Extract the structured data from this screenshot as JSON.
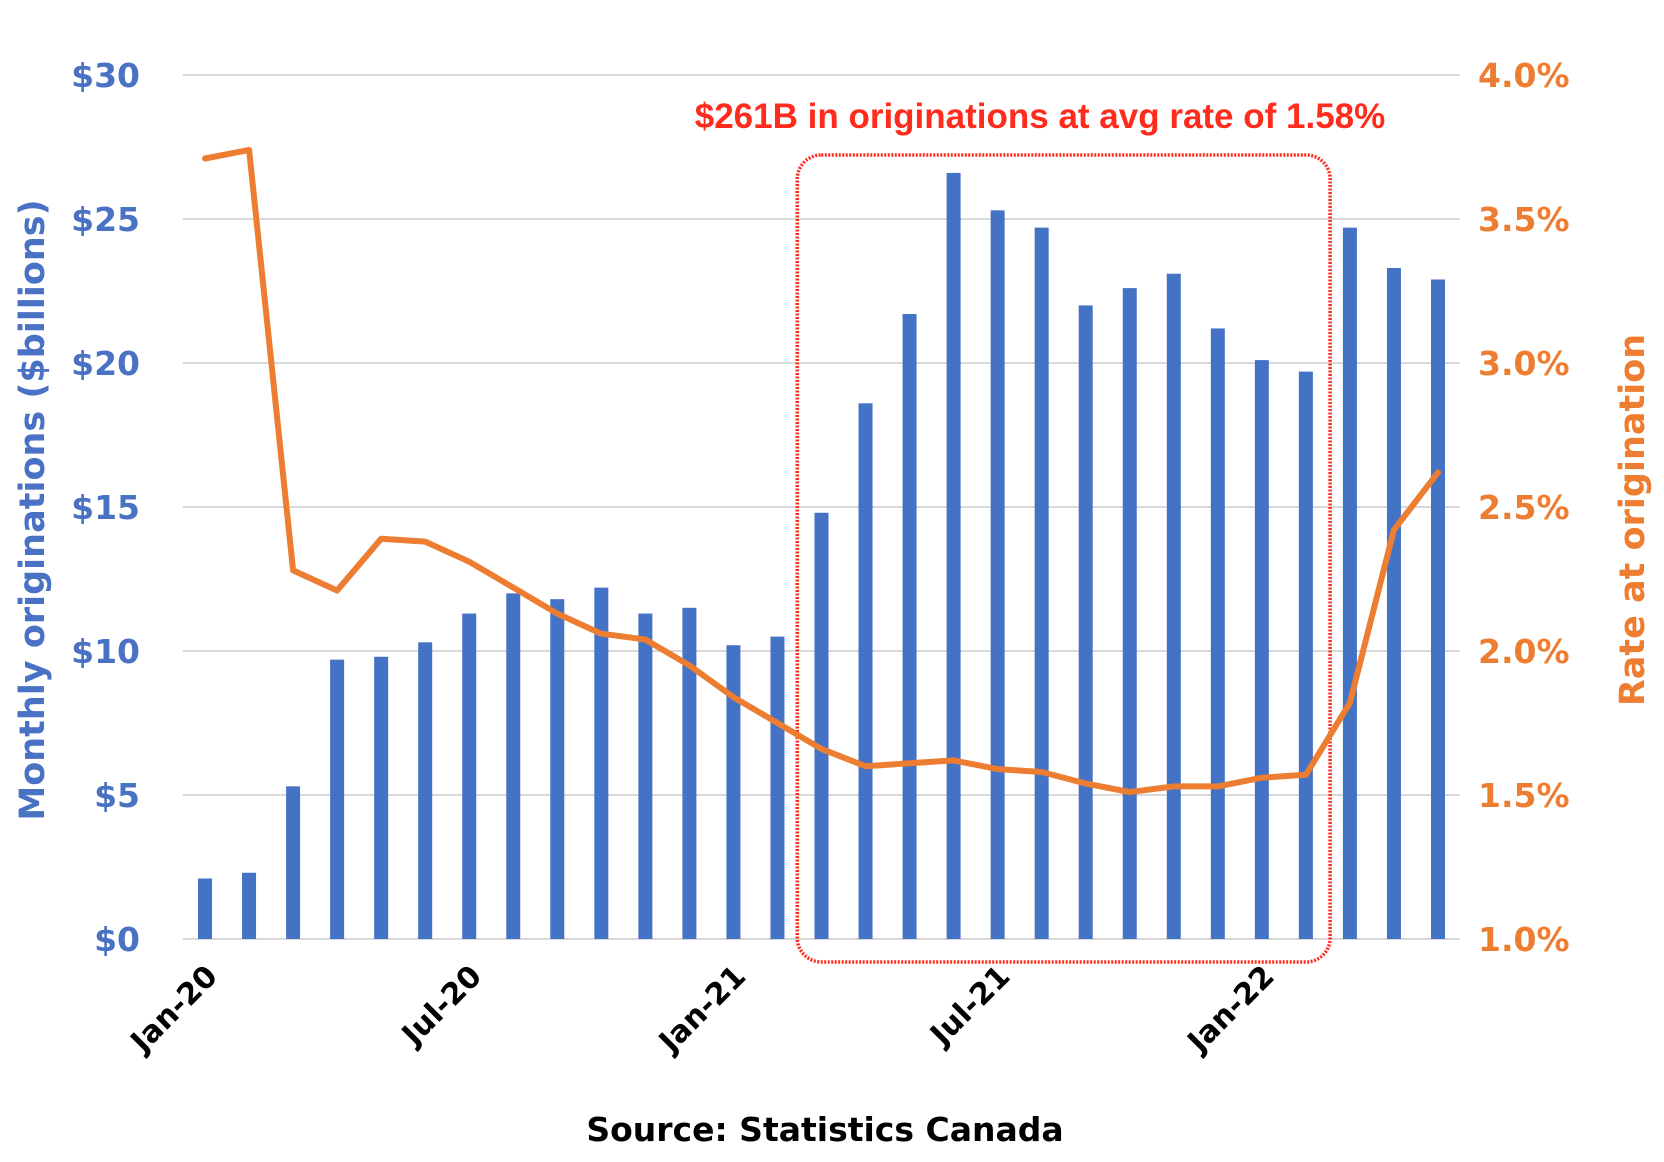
{
  "chart_data": {
    "type": "bar+line",
    "categories": [
      "Jan-20",
      "Feb-20",
      "Mar-20",
      "Apr-20",
      "May-20",
      "Jun-20",
      "Jul-20",
      "Aug-20",
      "Sep-20",
      "Oct-20",
      "Nov-20",
      "Dec-20",
      "Jan-21",
      "Feb-21",
      "Mar-21",
      "Apr-21",
      "May-21",
      "Jun-21",
      "Jul-21",
      "Aug-21",
      "Sep-21",
      "Oct-21",
      "Nov-21",
      "Dec-21",
      "Jan-22",
      "Feb-22",
      "Mar-22",
      "Apr-22",
      "May-22"
    ],
    "x_tick_labels": [
      {
        "index": 0,
        "label": "Jan-20"
      },
      {
        "index": 6,
        "label": "Jul-20"
      },
      {
        "index": 12,
        "label": "Jan-21"
      },
      {
        "index": 18,
        "label": "Jul-21"
      },
      {
        "index": 24,
        "label": "Jan-22"
      }
    ],
    "series": [
      {
        "name": "Monthly originations",
        "type": "bar",
        "axis": "left",
        "color": "#4472C4",
        "values": [
          2.1,
          2.3,
          5.3,
          9.7,
          9.8,
          10.3,
          11.3,
          12.0,
          11.8,
          12.2,
          11.3,
          11.5,
          10.2,
          10.5,
          14.8,
          18.6,
          21.7,
          26.6,
          25.3,
          24.7,
          22.0,
          22.6,
          23.1,
          21.2,
          20.1,
          19.7,
          24.7,
          23.3,
          22.9
        ]
      },
      {
        "name": "Rate at origination",
        "type": "line",
        "axis": "right",
        "color": "#ED7D31",
        "values": [
          3.71,
          3.74,
          2.28,
          2.21,
          2.39,
          2.38,
          2.31,
          2.22,
          2.13,
          2.06,
          2.04,
          1.95,
          1.84,
          1.75,
          1.66,
          1.6,
          1.61,
          1.62,
          1.59,
          1.58,
          1.54,
          1.51,
          1.53,
          1.53,
          1.56,
          1.57,
          1.82,
          2.42,
          2.62
        ]
      }
    ],
    "y_left": {
      "label": "Monthly originations ($billions)",
      "min": 0,
      "max": 30,
      "ticks": [
        "$0",
        "$5",
        "$10",
        "$15",
        "$20",
        "$25",
        "$30"
      ]
    },
    "y_right": {
      "label": "Rate at origination",
      "min": 1.0,
      "max": 4.0,
      "ticks": [
        "1.0%",
        "1.5%",
        "2.0%",
        "2.5%",
        "3.0%",
        "3.5%",
        "4.0%"
      ]
    },
    "grid": true,
    "legend": "none",
    "annotation": {
      "text": "$261B in originations at avg rate of 1.58%",
      "highlight_color": "#FF2B1C",
      "highlight_from": "Mar-21",
      "highlight_to": "Feb-22"
    },
    "source": "Source: Statistics Canada"
  }
}
